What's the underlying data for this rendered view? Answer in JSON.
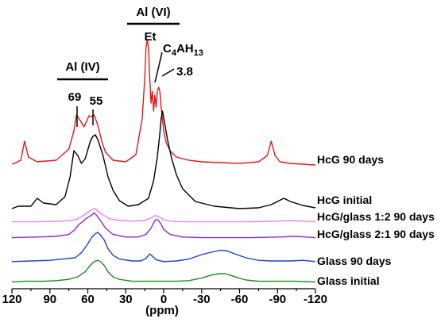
{
  "chart_data": {
    "type": "line",
    "xlabel": "(ppm)",
    "x_reversed": true,
    "xlim": [
      120,
      -120
    ],
    "xticks": [
      "120",
      "90",
      "60",
      "30",
      "0",
      "-30",
      "-60",
      "-90",
      "-120"
    ],
    "grid": false,
    "series": [
      {
        "name": "HcG 90 days",
        "color": "#e31a1c",
        "x": [
          125,
          118,
          113,
          110,
          107,
          100,
          85,
          75,
          71,
          69,
          66,
          63,
          59,
          57,
          55,
          52,
          49,
          46,
          40,
          30,
          22,
          17,
          15,
          14,
          13,
          12,
          11,
          10,
          9,
          8,
          7,
          6,
          5,
          4,
          3,
          2,
          0,
          -2,
          -5,
          -10,
          -20,
          -30,
          -45,
          -60,
          -75,
          -82,
          -85,
          -88,
          -92,
          -100,
          -110,
          -120
        ],
        "y": [
          3,
          4,
          8,
          32,
          12,
          6,
          8,
          22,
          45,
          65,
          58,
          50,
          64,
          63,
          65,
          52,
          32,
          18,
          8,
          6,
          15,
          60,
          110,
          150,
          160,
          150,
          110,
          80,
          95,
          70,
          90,
          75,
          95,
          100,
          95,
          75,
          45,
          30,
          20,
          12,
          8,
          6,
          5,
          4,
          6,
          14,
          32,
          14,
          6,
          4,
          3,
          2
        ]
      },
      {
        "name": "HcG initial",
        "color": "#000000",
        "x": [
          125,
          115,
          105,
          100,
          95,
          85,
          78,
          74,
          71,
          68,
          65,
          62,
          58,
          56,
          54,
          52,
          48,
          44,
          40,
          35,
          28,
          20,
          12,
          8,
          5,
          3,
          2,
          1,
          0,
          -3,
          -6,
          -10,
          -15,
          -25,
          -40,
          -60,
          -75,
          -85,
          -95,
          -100,
          -110,
          -120
        ],
        "y": [
          5,
          8,
          8,
          18,
          12,
          10,
          20,
          45,
          78,
          72,
          62,
          68,
          90,
          96,
          98,
          92,
          72,
          45,
          28,
          15,
          8,
          10,
          18,
          40,
          70,
          100,
          118,
          128,
          120,
          92,
          70,
          48,
          30,
          14,
          8,
          5,
          6,
          10,
          18,
          14,
          9,
          6
        ]
      },
      {
        "name": "HcG/glass 1:2 90 days",
        "color": "#ee82ee",
        "x": [
          125,
          100,
          80,
          70,
          64,
          60,
          57,
          55,
          52,
          48,
          43,
          35,
          25,
          15,
          10,
          7,
          4,
          2,
          0,
          -5,
          -15,
          -30,
          -50,
          -70,
          -90,
          -100,
          -120
        ],
        "y": [
          3,
          3,
          4,
          6,
          12,
          18,
          22,
          24,
          20,
          14,
          8,
          5,
          4,
          5,
          9,
          13,
          11,
          9,
          6,
          4,
          3,
          3,
          3,
          3,
          4,
          5,
          3
        ]
      },
      {
        "name": "HcG/glass 2:1 90 days",
        "color": "#8a2be2",
        "x": [
          125,
          100,
          85,
          75,
          70,
          67,
          64,
          62,
          59,
          56,
          55,
          53,
          50,
          46,
          40,
          30,
          20,
          14,
          10,
          8,
          6,
          4,
          2,
          0,
          -5,
          -15,
          -30,
          -50,
          -70,
          -90,
          -105,
          -120
        ],
        "y": [
          3,
          4,
          5,
          8,
          16,
          24,
          28,
          32,
          36,
          40,
          42,
          38,
          30,
          18,
          8,
          4,
          4,
          8,
          18,
          26,
          32,
          30,
          24,
          16,
          8,
          4,
          3,
          3,
          3,
          4,
          5,
          3
        ]
      },
      {
        "name": "Glass 90 days",
        "color": "#1f3fd6",
        "x": [
          125,
          105,
          90,
          80,
          70,
          65,
          60,
          57,
          54,
          52,
          50,
          47,
          44,
          40,
          35,
          25,
          18,
          14,
          11,
          8,
          6,
          0,
          -10,
          -20,
          -30,
          -40,
          -45,
          -50,
          -55,
          -65,
          -75,
          -85,
          -100,
          -110,
          -120
        ],
        "y": [
          4,
          5,
          6,
          8,
          10,
          18,
          32,
          42,
          48,
          50,
          46,
          38,
          24,
          14,
          8,
          5,
          5,
          9,
          16,
          11,
          7,
          4,
          5,
          8,
          15,
          20,
          22,
          21,
          17,
          10,
          6,
          5,
          5,
          6,
          4
        ]
      },
      {
        "name": "Glass initial",
        "color": "#228b22",
        "x": [
          125,
          110,
          95,
          85,
          75,
          68,
          62,
          58,
          55,
          52,
          50,
          47,
          44,
          40,
          35,
          25,
          15,
          5,
          0,
          -10,
          -20,
          -30,
          -38,
          -44,
          -48,
          -52,
          -58,
          -65,
          -75,
          -90,
          -105,
          -120
        ],
        "y": [
          2,
          3,
          3,
          4,
          6,
          10,
          18,
          28,
          34,
          36,
          34,
          28,
          18,
          10,
          6,
          3,
          3,
          3,
          3,
          3,
          4,
          8,
          13,
          15,
          15,
          13,
          9,
          5,
          3,
          3,
          3,
          2
        ]
      }
    ],
    "annotations": {
      "al_iv": "Al (IV)",
      "al_vi": "Al (VI)",
      "p69": "69",
      "p55": "55",
      "et": "Et",
      "c4ah13_base": "C",
      "c4ah13_sub1": "4",
      "c4ah13_mid": "AH",
      "c4ah13_sub2": "13",
      "p38": "3.8"
    }
  }
}
